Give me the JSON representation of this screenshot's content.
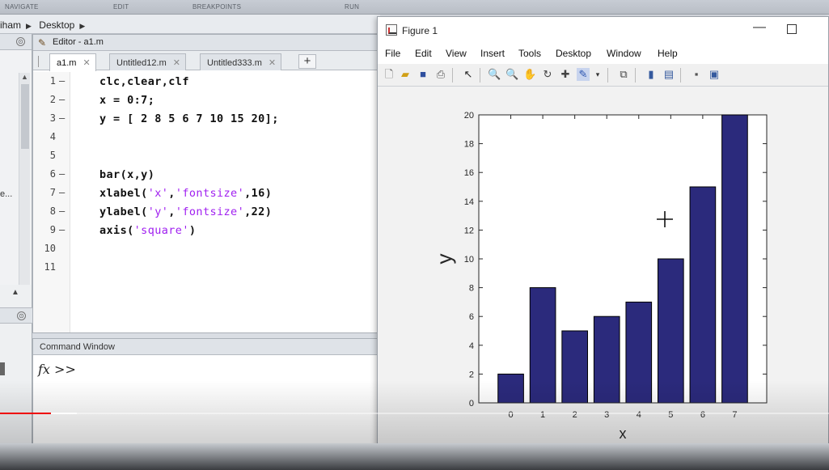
{
  "top_strip": {
    "items": [
      "NAVIGATE",
      "EDIT",
      "BREAKPOINTS",
      "RUN"
    ]
  },
  "path_bar": {
    "segments": [
      "iham",
      "Desktop"
    ]
  },
  "left_panel": {
    "truncated_label": "e..."
  },
  "editor": {
    "title": "Editor - a1.m",
    "tabs": [
      {
        "label": "a1.m"
      },
      {
        "label": "Untitled12.m"
      },
      {
        "label": "Untitled333.m"
      }
    ],
    "add_tab_label": "+",
    "lines": [
      {
        "no": "1",
        "dash": "—",
        "code": "clc,clear,clf"
      },
      {
        "no": "2",
        "dash": "—",
        "code": "x = 0:7;"
      },
      {
        "no": "3",
        "dash": "—",
        "code": "y = [ 2 8 5 6 7 10 15 20];"
      },
      {
        "no": "4",
        "dash": "",
        "code": ""
      },
      {
        "no": "5",
        "dash": "",
        "code": ""
      },
      {
        "no": "6",
        "dash": "—",
        "code": "bar(x,y)"
      },
      {
        "no": "7",
        "dash": "—",
        "code_pre": "xlabel(",
        "str1": "'x'",
        "mid": ",",
        "str2": "'fontsize'",
        "code_post": ",16)"
      },
      {
        "no": "8",
        "dash": "—",
        "code_pre": "ylabel(",
        "str1": "'y'",
        "mid": ",",
        "str2": "'fontsize'",
        "code_post": ",22)"
      },
      {
        "no": "9",
        "dash": "—",
        "code_pre": "axis(",
        "str1": "'square'",
        "code_post": ")"
      },
      {
        "no": "10",
        "dash": "",
        "code": ""
      },
      {
        "no": "11",
        "dash": "",
        "code": ""
      }
    ]
  },
  "command_window": {
    "title": "Command Window",
    "fx": "fx",
    "prompt": ">>"
  },
  "figure": {
    "title": "Figure 1",
    "min_label": "—",
    "menu": [
      "File",
      "Edit",
      "View",
      "Insert",
      "Tools",
      "Desktop",
      "Window",
      "Help"
    ],
    "toolbar_icons": [
      "new-file-icon",
      "open-folder-icon",
      "save-icon",
      "print-icon",
      "pointer-icon",
      "zoom-in-icon",
      "zoom-out-icon",
      "pan-icon",
      "rotate-icon",
      "data-cursor-icon",
      "brush-icon",
      "link-plot-icon",
      "colorbar-icon",
      "legend-icon",
      "hide-plot-tools-icon",
      "show-plot-tools-icon"
    ],
    "colors": {
      "bar_fill": "#2b2a7c",
      "bar_edge": "#000000"
    }
  },
  "chart_data": {
    "type": "bar",
    "categories": [
      "0",
      "1",
      "2",
      "3",
      "4",
      "5",
      "6",
      "7"
    ],
    "values": [
      2,
      8,
      5,
      6,
      7,
      10,
      15,
      20
    ],
    "xlabel": "x",
    "ylabel": "y",
    "ylim": [
      0,
      20
    ],
    "xlim": [
      -1,
      8
    ],
    "yticks": [
      0,
      2,
      4,
      6,
      8,
      10,
      12,
      14,
      16,
      18,
      20
    ],
    "grid": false,
    "axis": "square"
  }
}
